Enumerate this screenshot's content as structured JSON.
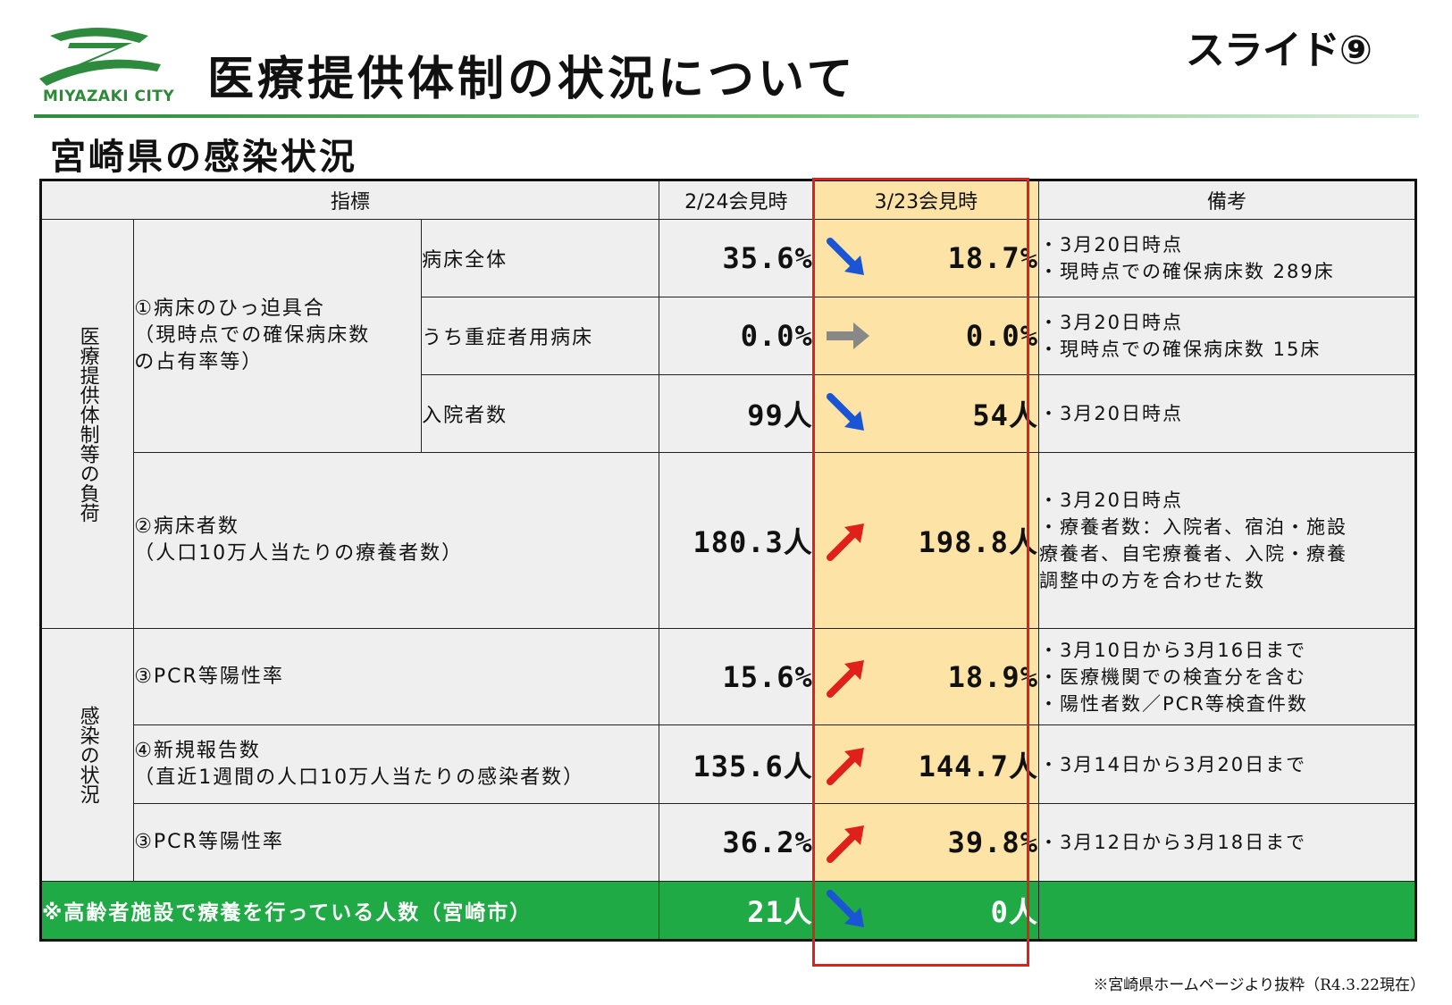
{
  "header": {
    "logo_text": "MIYAZAKI CITY",
    "title": "医療提供体制の状況について",
    "slide_label": "スライド⑨"
  },
  "section_title": "宮崎県の感染状況",
  "table": {
    "headers": {
      "indicator": "指標",
      "prev": "2/24会見時",
      "curr": "3/23会見時",
      "notes": "備考"
    },
    "groups": {
      "medical_load": "医療提供体制等の負荷",
      "infection": "感染の状況"
    },
    "bed_indicator": [
      "①病床のひっ迫具合",
      "（現時点での確保病床数",
      "の占有率等）"
    ],
    "rows": [
      {
        "label": "病床全体",
        "prev": "35.6%",
        "curr": "18.7%",
        "trend": "down",
        "notes": [
          "・3月20日時点",
          "・現時点での確保病床数 289床"
        ]
      },
      {
        "label": "うち重症者用病床",
        "prev": "0.0%",
        "curr": "0.0%",
        "trend": "flat",
        "notes": [
          "・3月20日時点",
          "・現時点での確保病床数 15床"
        ]
      },
      {
        "label": "入院者数",
        "prev": "99人",
        "curr": "54人",
        "trend": "down",
        "notes": [
          "・3月20日時点"
        ]
      },
      {
        "label_lines": [
          "②病床者数",
          "（人口10万人当たりの療養者数）"
        ],
        "prev": "180.3人",
        "curr": "198.8人",
        "trend": "up",
        "notes": [
          "・3月20日時点",
          "・療養者数：入院者、宿泊・施設",
          "療養者、自宅療養者、入院・療養",
          "調整中の方を合わせた数"
        ]
      },
      {
        "label_lines": [
          "③PCR等陽性率"
        ],
        "prev": "15.6%",
        "curr": "18.9%",
        "trend": "up",
        "notes": [
          "・3月10日から3月16日まで",
          "・医療機関での検査分を含む",
          "・陽性者数／PCR等検査件数"
        ]
      },
      {
        "label_lines": [
          "④新規報告数",
          "（直近1週間の人口10万人当たりの感染者数）"
        ],
        "prev": "135.6人",
        "curr": "144.7人",
        "trend": "up",
        "notes": [
          "・3月14日から3月20日まで"
        ]
      },
      {
        "label_lines": [
          "③PCR等陽性率"
        ],
        "prev": "36.2%",
        "curr": "39.8%",
        "trend": "up",
        "notes": [
          "・3月12日から3月18日まで"
        ]
      }
    ],
    "footer": {
      "label": "※高齢者施設で療養を行っている人数（宮崎市）",
      "prev": "21人",
      "curr": "0人",
      "trend": "down"
    }
  },
  "source_note": "※宮崎県ホームページより抜粋（R4.3.22現在）",
  "colors": {
    "accent_green": "#1faa45",
    "highlight_column": "#fde3a5",
    "highlight_border": "#e0201a",
    "arrow_up": "#e0201a",
    "arrow_down": "#1a55d6",
    "arrow_flat": "#888888"
  }
}
